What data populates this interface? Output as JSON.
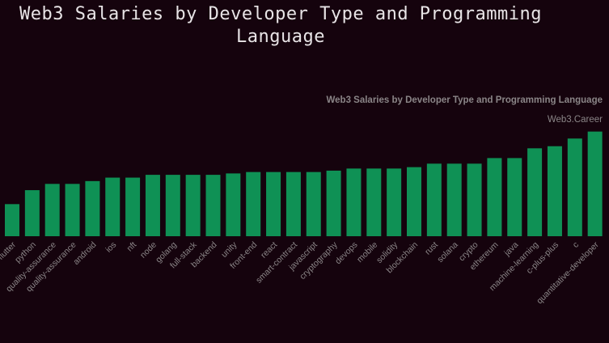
{
  "page": {
    "title": "Web3 Salaries by Developer Type and Programming Language",
    "subtitle": "Web3 Salaries by Developer Type and Programming Language",
    "watermark": "Web3.Career"
  },
  "colors": {
    "background": "#15030d",
    "bar": "#0f9155",
    "text": "#e8e4e6",
    "muted": "#8a8587"
  },
  "chart_data": {
    "type": "bar",
    "title": "Web3 Salaries by Developer Type and Programming Language",
    "xlabel": "",
    "ylabel": "",
    "grid": false,
    "ylim": [
      0,
      160
    ],
    "categories": [
      "flutter",
      "python",
      "quality-assurance",
      "quality-assurance",
      "android",
      "ios",
      "nft",
      "node",
      "golang",
      "full-stack",
      "backend",
      "unity",
      "front-end",
      "react",
      "smart-contract",
      "javascript",
      "cryptography",
      "devops",
      "mobile",
      "solidity",
      "blockchain",
      "rust",
      "solana",
      "crypto",
      "ethereum",
      "java",
      "machine-learning",
      "c-plus-plus",
      "c",
      "quantitative-developer"
    ],
    "values": [
      46,
      66,
      75,
      75,
      79,
      84,
      84,
      88,
      88,
      88,
      88,
      90,
      92,
      92,
      92,
      92,
      94,
      97,
      97,
      97,
      99,
      104,
      104,
      104,
      112,
      112,
      126,
      129,
      140,
      150
    ]
  }
}
